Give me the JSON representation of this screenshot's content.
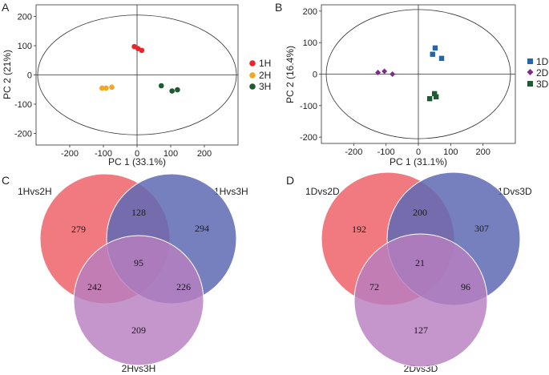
{
  "panels": {
    "a": "A",
    "b": "B",
    "c": "C",
    "d": "D"
  },
  "chart_data": [
    {
      "id": "A",
      "type": "scatter",
      "title": "",
      "xlabel": "PC 1 (33.1%)",
      "ylabel": "PC 2 (21%)",
      "xlim": [
        -300,
        300
      ],
      "ylim": [
        -240,
        240
      ],
      "xticks": [
        -200,
        -100,
        0,
        100,
        200
      ],
      "yticks": [
        -200,
        -100,
        0,
        100,
        200
      ],
      "x_tick_labels": [
        "-200",
        "-100",
        "0",
        "100",
        "200"
      ],
      "y_tick_labels": [
        "-200",
        "-100",
        "0",
        "100",
        "200"
      ],
      "ellipse": {
        "rx": 300,
        "ry": 205
      },
      "legend_position": "right",
      "series": [
        {
          "name": "1H",
          "color": "#e8262b",
          "marker": "circle",
          "points": [
            [
              -8,
              97
            ],
            [
              3,
              90
            ],
            [
              14,
              84
            ]
          ]
        },
        {
          "name": "2H",
          "color": "#f5a623",
          "marker": "circle",
          "points": [
            [
              -104,
              -45
            ],
            [
              -92,
              -45
            ],
            [
              -75,
              -42
            ]
          ]
        },
        {
          "name": "3H",
          "color": "#1e5a32",
          "marker": "circle",
          "points": [
            [
              72,
              -37
            ],
            [
              104,
              -55
            ],
            [
              120,
              -51
            ]
          ]
        }
      ]
    },
    {
      "id": "B",
      "type": "scatter",
      "title": "",
      "xlabel": "PC 1 (31.1%)",
      "ylabel": "PC 2 (16.4%)",
      "xlim": [
        -300,
        300
      ],
      "ylim": [
        -220,
        220
      ],
      "xticks": [
        -200,
        -100,
        0,
        100,
        200
      ],
      "yticks": [
        -200,
        -100,
        0,
        100,
        200
      ],
      "x_tick_labels": [
        "-200",
        "-100",
        "0",
        "100",
        "200"
      ],
      "y_tick_labels": [
        "-200",
        "-100",
        "0",
        "100",
        "200"
      ],
      "ellipse": {
        "rx": 290,
        "ry": 205
      },
      "legend_position": "right",
      "series": [
        {
          "name": "1D",
          "color": "#2364aa",
          "marker": "square",
          "points": [
            [
              52,
              83
            ],
            [
              44,
              63
            ],
            [
              72,
              50
            ]
          ]
        },
        {
          "name": "2D",
          "color": "#7b2e86",
          "marker": "diamond",
          "points": [
            [
              -125,
              5
            ],
            [
              -105,
              9
            ],
            [
              -80,
              0
            ]
          ]
        },
        {
          "name": "3D",
          "color": "#1e5a32",
          "marker": "square",
          "points": [
            [
              35,
              -78
            ],
            [
              50,
              -62
            ],
            [
              55,
              -72
            ]
          ]
        }
      ]
    }
  ],
  "venn": [
    {
      "id": "C",
      "sets": [
        "1Hvs2H",
        "1Hvs3H",
        "2Hvs3H"
      ],
      "only_a": "279",
      "only_b": "294",
      "only_c": "209",
      "ab": "128",
      "ac": "242",
      "bc": "226",
      "abc": "95",
      "colors": [
        "#ef6b73",
        "#5e6ab4",
        "#b77fc0"
      ]
    },
    {
      "id": "D",
      "sets": [
        "1Dvs2D",
        "1Dvs3D",
        "2Dvs3D"
      ],
      "only_a": "192",
      "only_b": "307",
      "only_c": "127",
      "ab": "200",
      "ac": "72",
      "bc": "96",
      "abc": "21",
      "colors": [
        "#ef6b73",
        "#5e6ab4",
        "#b77fc0"
      ]
    }
  ]
}
